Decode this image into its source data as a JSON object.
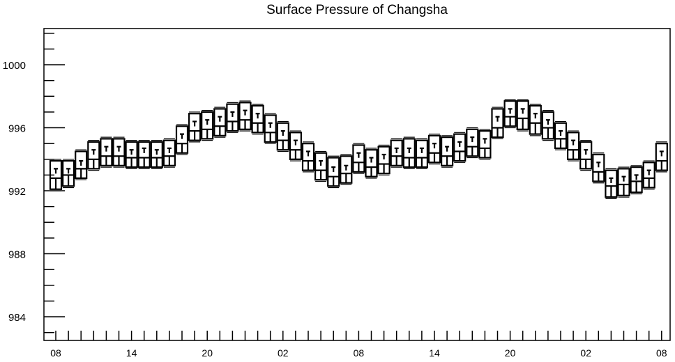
{
  "chart_data": {
    "type": "boxplot",
    "title": "Surface Pressure of Changsha",
    "xlabel": "",
    "ylabel": "",
    "ylim": [
      982.5,
      1002.3
    ],
    "y_ticks": [
      984,
      988,
      992,
      996,
      1000
    ],
    "x_tick_labels": [
      "08",
      "14",
      "20",
      "02",
      "08",
      "14",
      "20",
      "02",
      "08"
    ],
    "grid": false,
    "series": [
      {
        "values": [
          {
            "x": 0,
            "q1": 992.1,
            "med": 992.8,
            "q3": 993.9,
            "mean": 993.4,
            "min": 992.0,
            "max": 994.0
          },
          {
            "x": 1,
            "q1": 992.3,
            "med": 993.0,
            "q3": 993.9,
            "mean": 993.4,
            "min": 992.2,
            "max": 994.0
          },
          {
            "x": 2,
            "q1": 992.8,
            "med": 993.4,
            "q3": 994.5,
            "mean": 993.9,
            "min": 992.7,
            "max": 994.6
          },
          {
            "x": 3,
            "q1": 993.4,
            "med": 994.0,
            "q3": 995.1,
            "mean": 994.6,
            "min": 993.3,
            "max": 995.2
          },
          {
            "x": 4,
            "q1": 993.6,
            "med": 994.2,
            "q3": 995.3,
            "mean": 994.8,
            "min": 993.5,
            "max": 995.4
          },
          {
            "x": 5,
            "q1": 993.6,
            "med": 994.2,
            "q3": 995.3,
            "mean": 994.8,
            "min": 993.5,
            "max": 995.4
          },
          {
            "x": 6,
            "q1": 993.5,
            "med": 994.1,
            "q3": 995.1,
            "mean": 994.6,
            "min": 993.4,
            "max": 995.2
          },
          {
            "x": 7,
            "q1": 993.5,
            "med": 994.1,
            "q3": 995.1,
            "mean": 994.7,
            "min": 993.4,
            "max": 995.2
          },
          {
            "x": 8,
            "q1": 993.5,
            "med": 994.1,
            "q3": 995.1,
            "mean": 994.6,
            "min": 993.4,
            "max": 995.2
          },
          {
            "x": 9,
            "q1": 993.6,
            "med": 994.2,
            "q3": 995.2,
            "mean": 994.7,
            "min": 993.5,
            "max": 995.3
          },
          {
            "x": 10,
            "q1": 994.4,
            "med": 995.0,
            "q3": 996.1,
            "mean": 995.6,
            "min": 994.3,
            "max": 996.2
          },
          {
            "x": 11,
            "q1": 995.2,
            "med": 995.8,
            "q3": 996.9,
            "mean": 996.4,
            "min": 995.1,
            "max": 997.0
          },
          {
            "x": 12,
            "q1": 995.3,
            "med": 995.9,
            "q3": 997.0,
            "mean": 996.5,
            "min": 995.2,
            "max": 997.1
          },
          {
            "x": 13,
            "q1": 995.5,
            "med": 996.1,
            "q3": 997.2,
            "mean": 996.7,
            "min": 995.4,
            "max": 997.3
          },
          {
            "x": 14,
            "q1": 995.8,
            "med": 996.4,
            "q3": 997.5,
            "mean": 997.0,
            "min": 995.7,
            "max": 997.6
          },
          {
            "x": 15,
            "q1": 995.9,
            "med": 996.5,
            "q3": 997.6,
            "mean": 997.1,
            "min": 995.8,
            "max": 997.7
          },
          {
            "x": 16,
            "q1": 995.7,
            "med": 996.3,
            "q3": 997.4,
            "mean": 996.9,
            "min": 995.6,
            "max": 997.5
          },
          {
            "x": 17,
            "q1": 995.1,
            "med": 995.7,
            "q3": 996.8,
            "mean": 996.3,
            "min": 995.0,
            "max": 996.9
          },
          {
            "x": 18,
            "q1": 994.6,
            "med": 995.2,
            "q3": 996.3,
            "mean": 995.8,
            "min": 994.5,
            "max": 996.4
          },
          {
            "x": 19,
            "q1": 994.0,
            "med": 994.6,
            "q3": 995.7,
            "mean": 995.2,
            "min": 993.9,
            "max": 995.8
          },
          {
            "x": 20,
            "q1": 993.3,
            "med": 993.9,
            "q3": 995.0,
            "mean": 994.5,
            "min": 993.2,
            "max": 995.1
          },
          {
            "x": 21,
            "q1": 992.7,
            "med": 993.3,
            "q3": 994.4,
            "mean": 993.9,
            "min": 992.6,
            "max": 994.5
          },
          {
            "x": 22,
            "q1": 992.3,
            "med": 992.9,
            "q3": 994.1,
            "mean": 993.5,
            "min": 992.2,
            "max": 994.2
          },
          {
            "x": 23,
            "q1": 992.5,
            "med": 993.1,
            "q3": 994.2,
            "mean": 993.6,
            "min": 992.4,
            "max": 994.3
          },
          {
            "x": 24,
            "q1": 993.2,
            "med": 993.8,
            "q3": 994.9,
            "mean": 994.4,
            "min": 993.1,
            "max": 995.0
          },
          {
            "x": 25,
            "q1": 992.9,
            "med": 993.5,
            "q3": 994.6,
            "mean": 994.1,
            "min": 992.8,
            "max": 994.7
          },
          {
            "x": 26,
            "q1": 993.1,
            "med": 993.7,
            "q3": 994.8,
            "mean": 994.3,
            "min": 993.0,
            "max": 994.9
          },
          {
            "x": 27,
            "q1": 993.6,
            "med": 994.2,
            "q3": 995.2,
            "mean": 994.7,
            "min": 993.5,
            "max": 995.3
          },
          {
            "x": 28,
            "q1": 993.5,
            "med": 994.1,
            "q3": 995.3,
            "mean": 994.7,
            "min": 993.4,
            "max": 995.4
          },
          {
            "x": 29,
            "q1": 993.5,
            "med": 994.1,
            "q3": 995.2,
            "mean": 994.7,
            "min": 993.4,
            "max": 995.3
          },
          {
            "x": 30,
            "q1": 993.8,
            "med": 994.4,
            "q3": 995.5,
            "mean": 995.0,
            "min": 993.7,
            "max": 995.6
          },
          {
            "x": 31,
            "q1": 993.6,
            "med": 994.2,
            "q3": 995.4,
            "mean": 994.8,
            "min": 993.5,
            "max": 995.5
          },
          {
            "x": 32,
            "q1": 993.9,
            "med": 994.5,
            "q3": 995.6,
            "mean": 995.1,
            "min": 993.8,
            "max": 995.7
          },
          {
            "x": 33,
            "q1": 994.2,
            "med": 994.8,
            "q3": 995.9,
            "mean": 995.4,
            "min": 994.1,
            "max": 996.0
          },
          {
            "x": 34,
            "q1": 994.1,
            "med": 994.7,
            "q3": 995.8,
            "mean": 995.3,
            "min": 994.0,
            "max": 995.9
          },
          {
            "x": 35,
            "q1": 995.4,
            "med": 996.0,
            "q3": 997.2,
            "mean": 996.7,
            "min": 995.3,
            "max": 997.3
          },
          {
            "x": 36,
            "q1": 996.1,
            "med": 996.7,
            "q3": 997.7,
            "mean": 997.2,
            "min": 996.0,
            "max": 997.8
          },
          {
            "x": 37,
            "q1": 995.9,
            "med": 996.6,
            "q3": 997.7,
            "mean": 997.2,
            "min": 995.8,
            "max": 997.8
          },
          {
            "x": 38,
            "q1": 995.6,
            "med": 996.3,
            "q3": 997.4,
            "mean": 996.9,
            "min": 995.5,
            "max": 997.5
          },
          {
            "x": 39,
            "q1": 995.3,
            "med": 996.0,
            "q3": 997.0,
            "mean": 996.5,
            "min": 995.2,
            "max": 997.1
          },
          {
            "x": 40,
            "q1": 994.7,
            "med": 995.3,
            "q3": 996.3,
            "mean": 995.8,
            "min": 994.6,
            "max": 996.4
          },
          {
            "x": 41,
            "q1": 994.0,
            "med": 994.6,
            "q3": 995.7,
            "mean": 995.2,
            "min": 993.9,
            "max": 995.8
          },
          {
            "x": 42,
            "q1": 993.4,
            "med": 994.0,
            "q3": 995.1,
            "mean": 994.6,
            "min": 993.3,
            "max": 995.2
          },
          {
            "x": 43,
            "q1": 992.6,
            "med": 993.2,
            "q3": 994.3,
            "mean": 993.8,
            "min": 992.5,
            "max": 994.4
          },
          {
            "x": 44,
            "q1": 991.6,
            "med": 992.3,
            "q3": 993.3,
            "mean": 992.8,
            "min": 991.5,
            "max": 993.4
          },
          {
            "x": 45,
            "q1": 991.7,
            "med": 992.4,
            "q3": 993.4,
            "mean": 992.9,
            "min": 991.6,
            "max": 993.5
          },
          {
            "x": 46,
            "q1": 991.9,
            "med": 992.6,
            "q3": 993.5,
            "mean": 993.0,
            "min": 991.8,
            "max": 993.6
          },
          {
            "x": 47,
            "q1": 992.2,
            "med": 992.8,
            "q3": 993.8,
            "mean": 993.3,
            "min": 992.1,
            "max": 993.9
          },
          {
            "x": 48,
            "q1": 993.3,
            "med": 993.9,
            "q3": 995.0,
            "mean": 994.5,
            "min": 993.2,
            "max": 995.1
          }
        ]
      }
    ]
  }
}
